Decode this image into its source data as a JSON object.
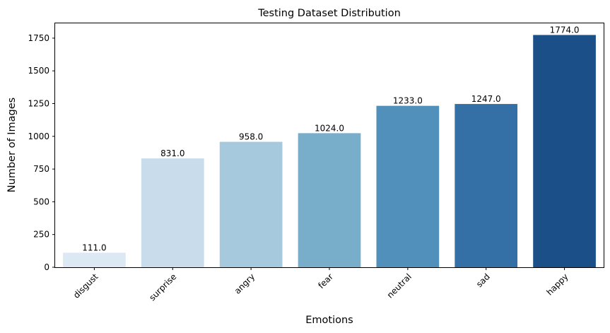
{
  "chart_data": {
    "type": "bar",
    "title": "Testing Dataset Distribution",
    "xlabel": "Emotions",
    "ylabel": "Number of Images",
    "categories": [
      "disgust",
      "surprise",
      "angry",
      "fear",
      "neutral",
      "sad",
      "happy"
    ],
    "values": [
      111.0,
      831.0,
      958.0,
      1024.0,
      1233.0,
      1247.0,
      1774.0
    ],
    "value_labels": [
      "111.0",
      "831.0",
      "958.0",
      "1024.0",
      "1233.0",
      "1247.0",
      "1774.0"
    ],
    "ylim": [
      0,
      1863
    ],
    "yticks": [
      0,
      250,
      500,
      750,
      1000,
      1250,
      1500,
      1750
    ],
    "ytick_labels": [
      "0",
      "250",
      "500",
      "750",
      "1000",
      "1250",
      "1500",
      "1750"
    ],
    "colors": [
      "#dce9f5",
      "#c8dcec",
      "#a6c9dd",
      "#79aecb",
      "#5190bb",
      "#3470a6",
      "#1b4f88"
    ],
    "grid": false,
    "legend": "none",
    "xtick_rotation_deg": 45
  }
}
